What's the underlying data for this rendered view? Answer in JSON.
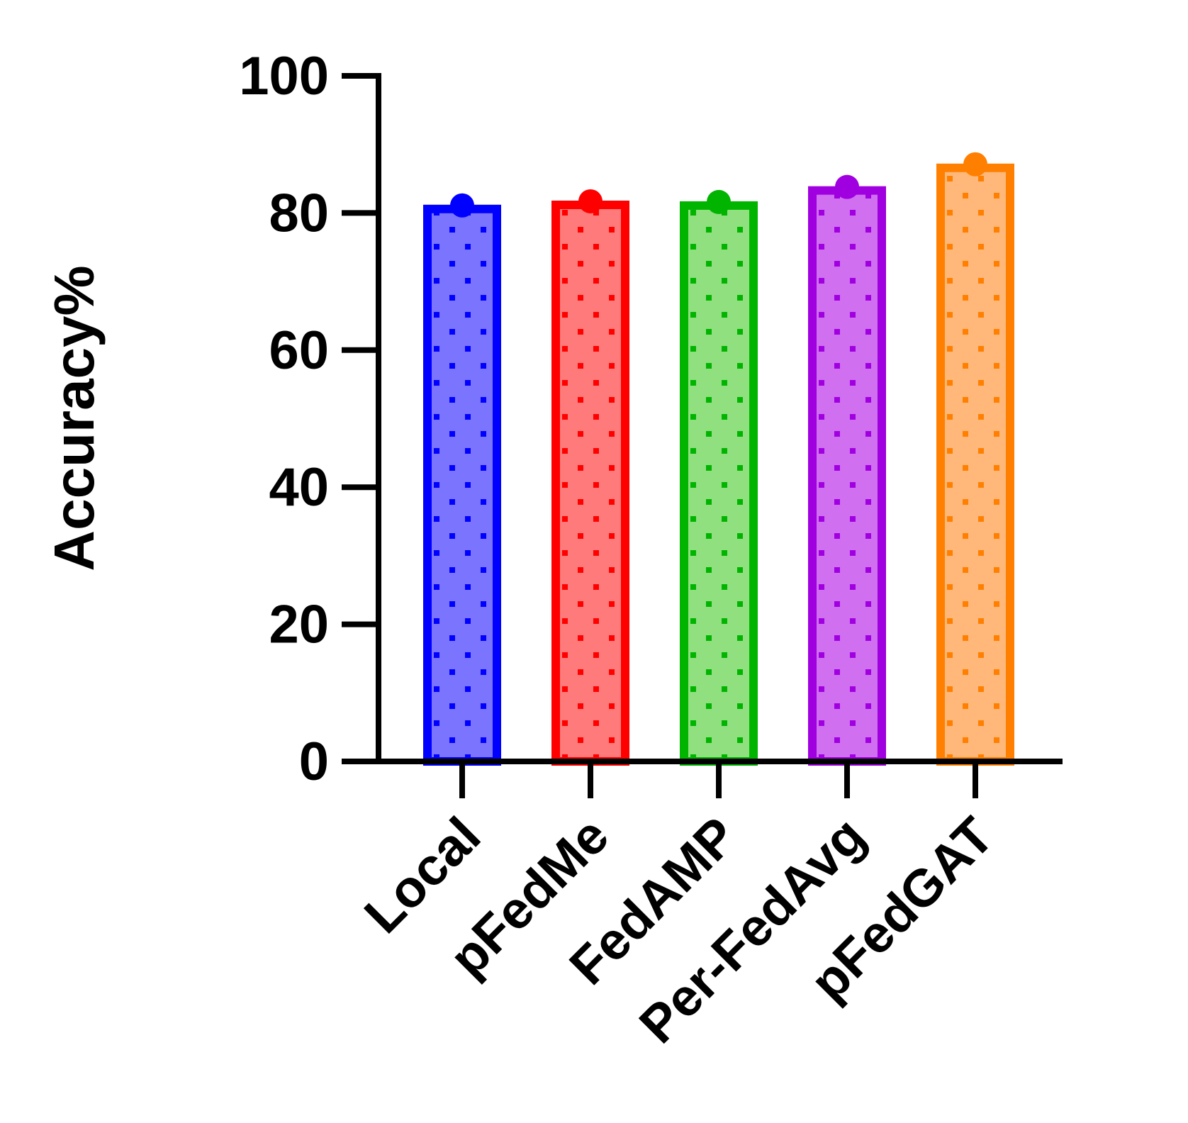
{
  "chart_data": {
    "type": "bar",
    "y_label": "Accuracy%",
    "categories": [
      "Local",
      "pFedMe",
      "FedAMP",
      "Per-FedAvg",
      "pFedGAT"
    ],
    "values": [
      81.1,
      81.7,
      81.6,
      83.8,
      87.1
    ],
    "colors": [
      "#0000ff",
      "#ff0000",
      "#00b400",
      "#a000e0",
      "#ff8000"
    ],
    "fill_colors": [
      "#7b74ff",
      "#ff7b7b",
      "#90e080",
      "#d070f0",
      "#ffb87a"
    ],
    "ylim": [
      0,
      100
    ],
    "yticks": [
      0,
      20,
      40,
      60,
      80,
      100
    ]
  }
}
